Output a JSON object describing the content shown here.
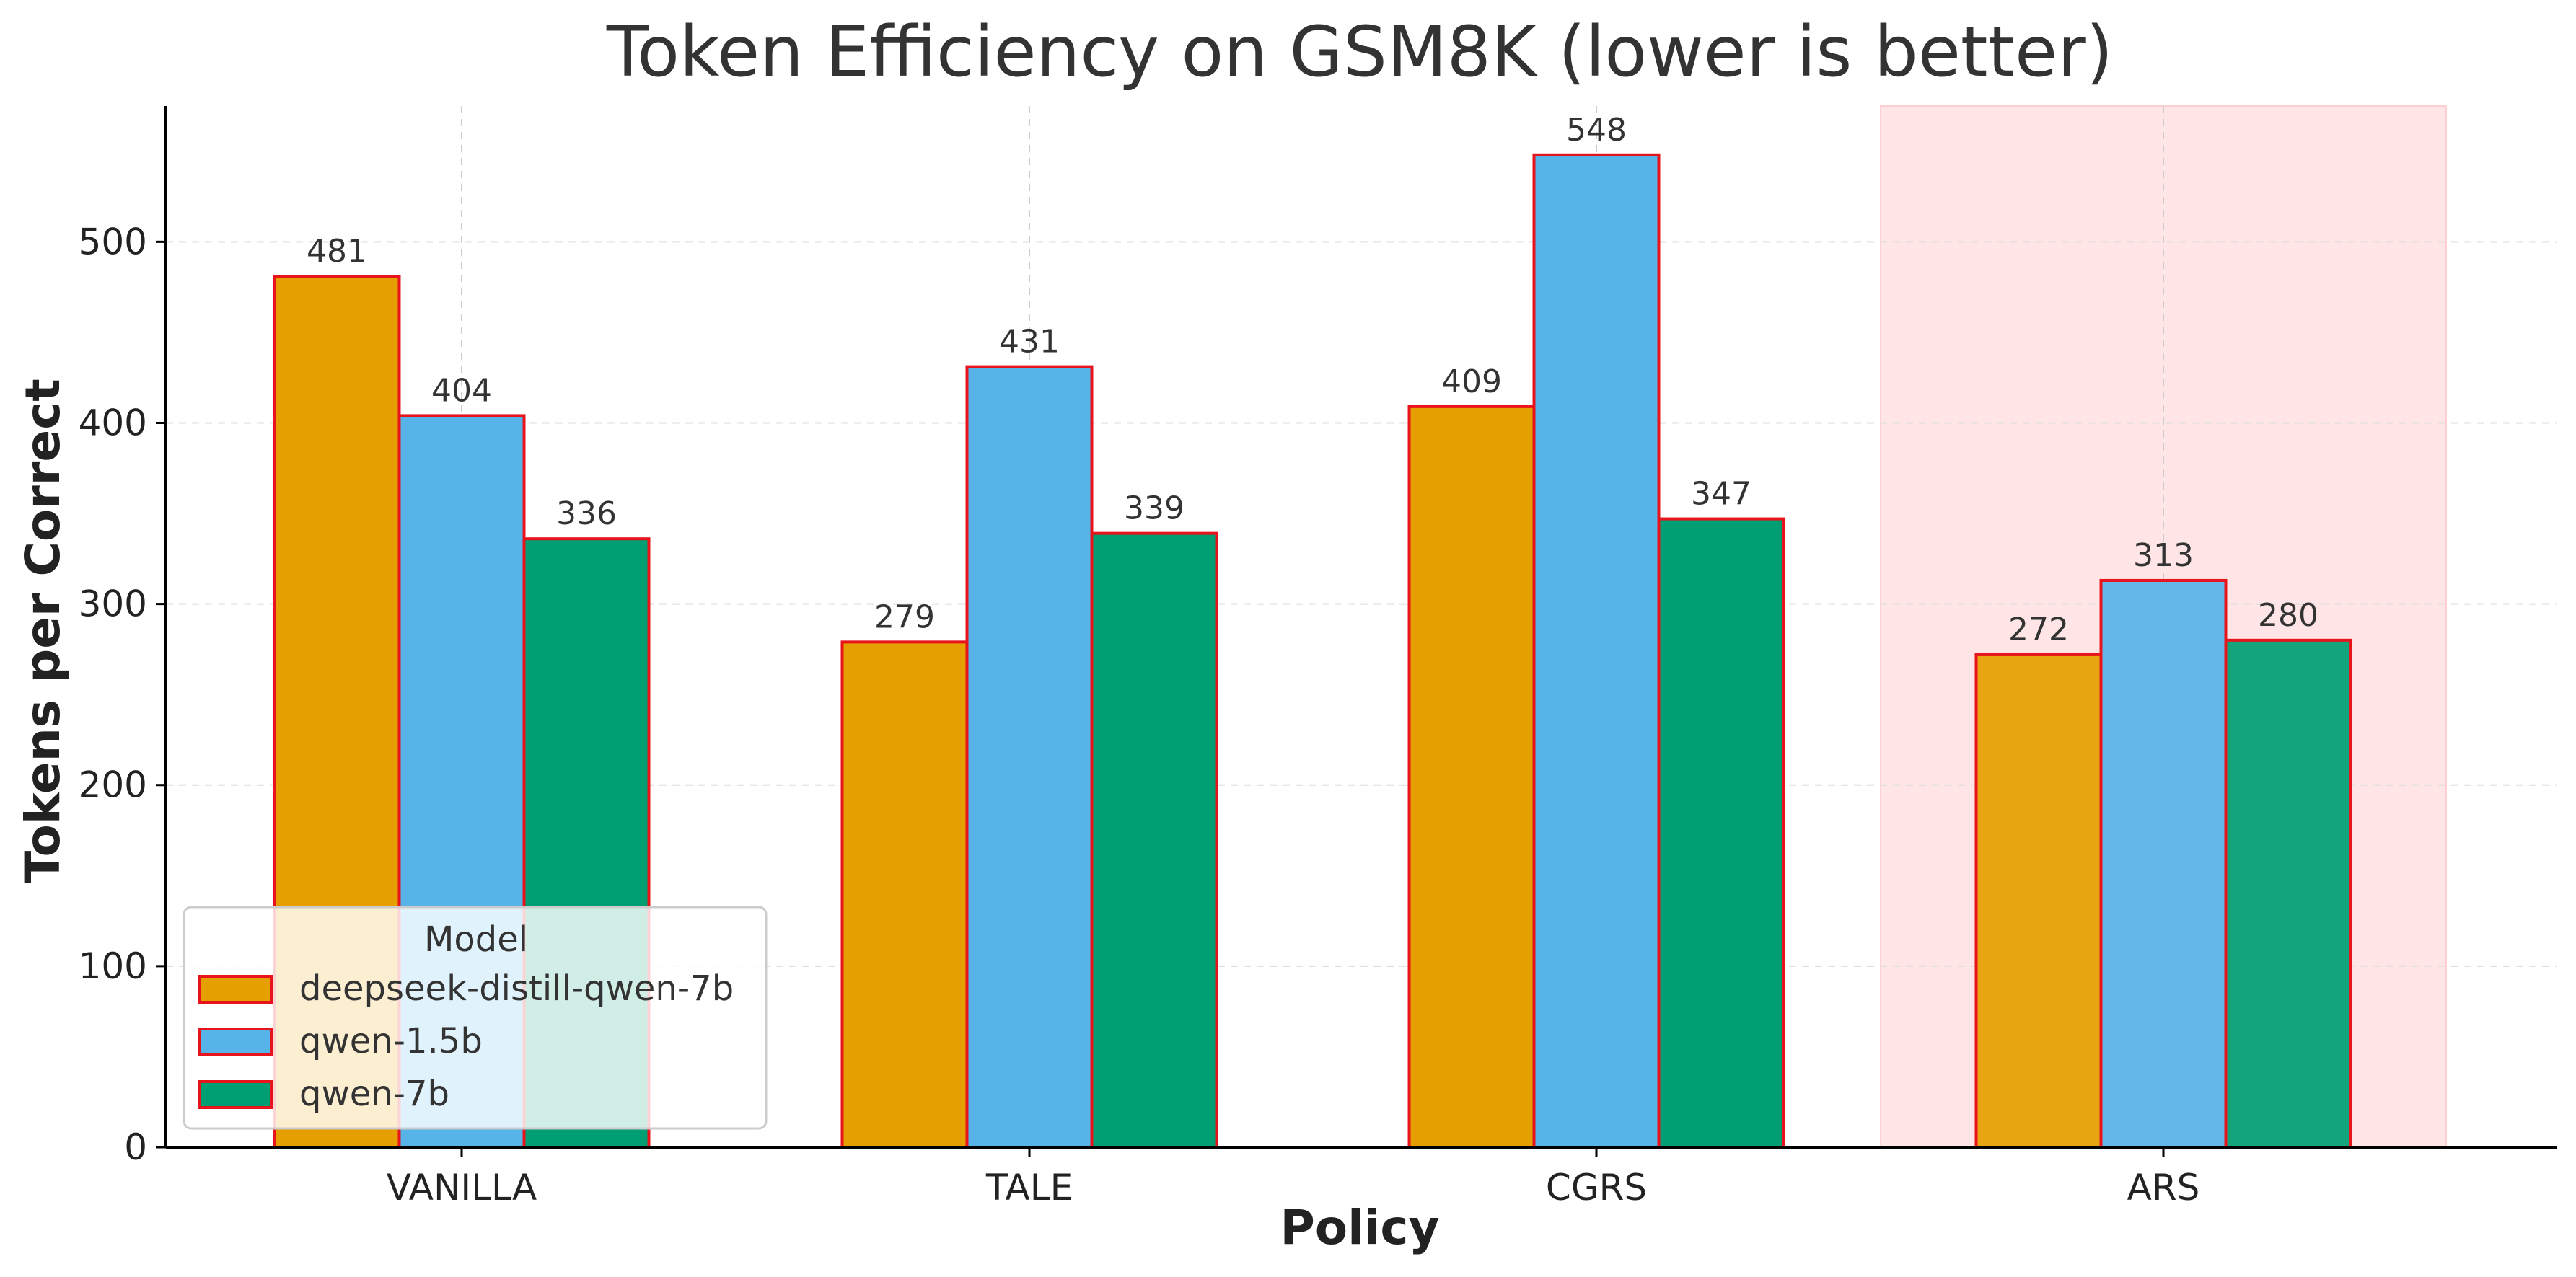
{
  "chart_data": {
    "type": "bar",
    "title": "Token Efficiency on GSM8K (lower is better)",
    "xlabel": "Policy",
    "ylabel": "Tokens per Correct",
    "categories": [
      "VANILLA",
      "TALE",
      "CGRS",
      "ARS"
    ],
    "series": [
      {
        "name": "deepseek-distill-qwen-7b",
        "color": "#E69F00",
        "values": [
          481,
          279,
          409,
          272
        ]
      },
      {
        "name": "qwen-1.5b",
        "color": "#56B4E9",
        "values": [
          404,
          431,
          548,
          313
        ]
      },
      {
        "name": "qwen-7b",
        "color": "#009E73",
        "values": [
          336,
          339,
          347,
          280
        ]
      }
    ],
    "ylim": [
      0,
      575
    ],
    "yticks": [
      0,
      100,
      200,
      300,
      400,
      500
    ],
    "grid": true,
    "highlighted_category": "ARS",
    "highlight_color": "#FFE5E5",
    "bar_edge_color": "#E8141C",
    "legend": {
      "title": "Model",
      "position": "lower-left"
    }
  }
}
